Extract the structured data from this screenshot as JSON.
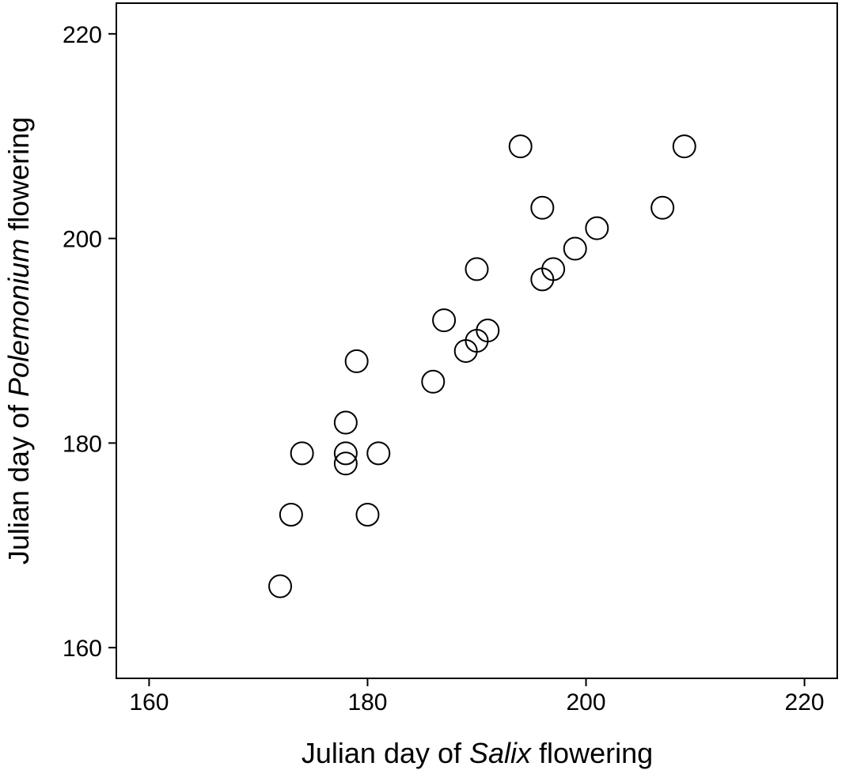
{
  "chart_data": {
    "type": "scatter",
    "title": "",
    "xlabel": {
      "pre": "Julian day of ",
      "italic": "Salix",
      "post": " flowering"
    },
    "ylabel": {
      "pre": "Julian day of ",
      "italic": "Polemonium",
      "post": " flowering"
    },
    "xlim": [
      157,
      223
    ],
    "ylim": [
      157,
      223
    ],
    "xticks": [
      160,
      180,
      200,
      220
    ],
    "yticks": [
      160,
      180,
      200,
      220
    ],
    "grid": false,
    "legend": "none",
    "marker": "open-circle",
    "points": [
      {
        "x": 172,
        "y": 166
      },
      {
        "x": 173,
        "y": 173
      },
      {
        "x": 174,
        "y": 179
      },
      {
        "x": 178,
        "y": 182
      },
      {
        "x": 178,
        "y": 179
      },
      {
        "x": 178,
        "y": 178
      },
      {
        "x": 179,
        "y": 188
      },
      {
        "x": 180,
        "y": 173
      },
      {
        "x": 181,
        "y": 179
      },
      {
        "x": 186,
        "y": 186
      },
      {
        "x": 187,
        "y": 192
      },
      {
        "x": 189,
        "y": 189
      },
      {
        "x": 190,
        "y": 190
      },
      {
        "x": 190,
        "y": 197
      },
      {
        "x": 191,
        "y": 191
      },
      {
        "x": 194,
        "y": 209
      },
      {
        "x": 196,
        "y": 203
      },
      {
        "x": 196,
        "y": 196
      },
      {
        "x": 197,
        "y": 197
      },
      {
        "x": 199,
        "y": 199
      },
      {
        "x": 201,
        "y": 201
      },
      {
        "x": 207,
        "y": 203
      },
      {
        "x": 209,
        "y": 209
      }
    ]
  }
}
